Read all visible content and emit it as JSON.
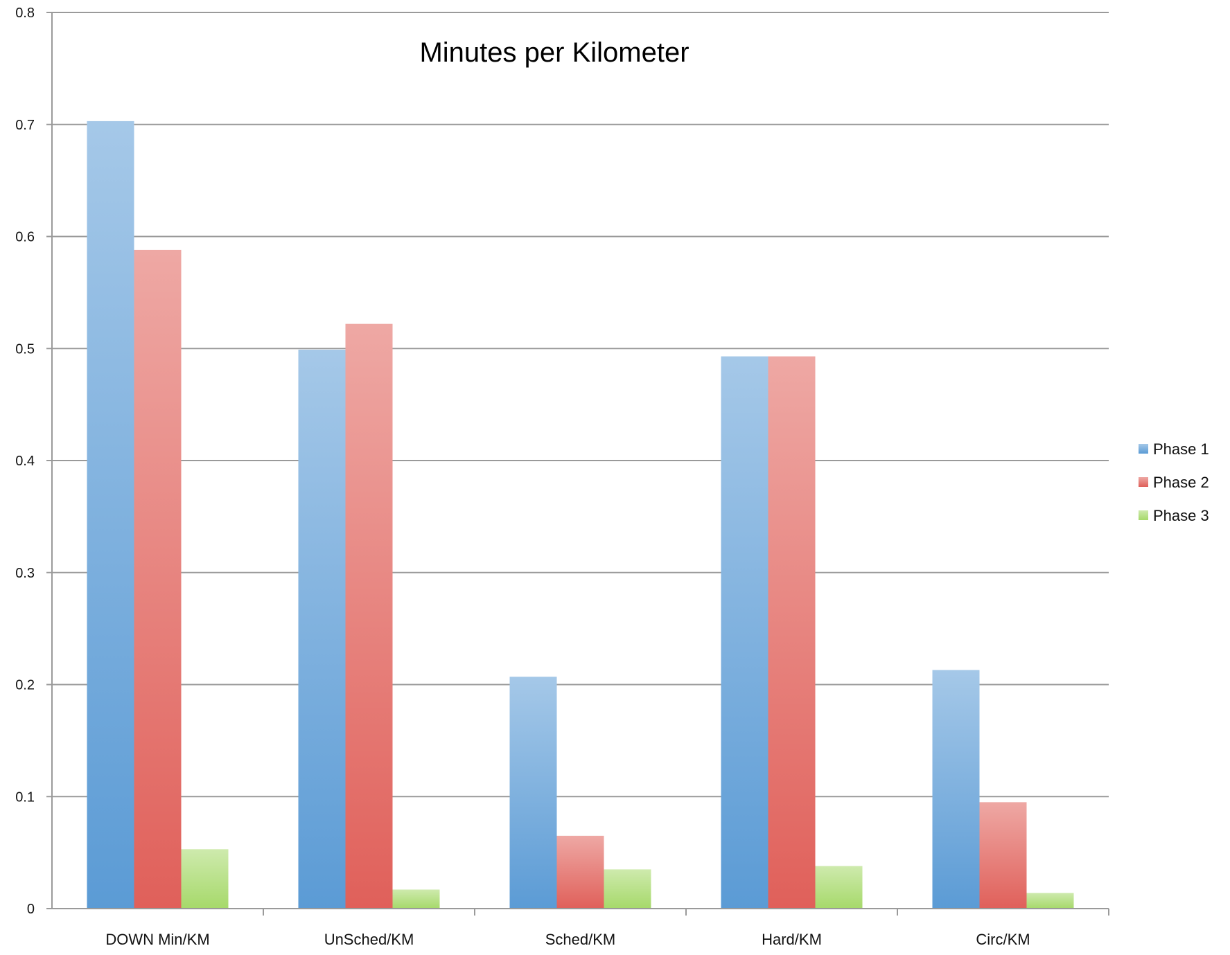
{
  "chart_data": {
    "type": "bar",
    "title": "Minutes per Kilometer",
    "xlabel": "",
    "ylabel": "",
    "ylim": [
      0,
      0.8
    ],
    "yticks": [
      0,
      0.1,
      0.2,
      0.3,
      0.4,
      0.5,
      0.6,
      0.7,
      0.8
    ],
    "ytick_labels": [
      "0",
      "0.1",
      "0.2",
      "0.3",
      "0.4",
      "0.5",
      "0.6",
      "0.7",
      "0.8"
    ],
    "grid": true,
    "legend_position": "right",
    "categories": [
      "DOWN Min/KM",
      "UnSched/KM",
      "Sched/KM",
      "Hard/KM",
      "Circ/KM"
    ],
    "series": [
      {
        "name": "Phase 1",
        "color": "#5b9bd5",
        "values": [
          0.703,
          0.499,
          0.207,
          0.493,
          0.213
        ]
      },
      {
        "name": "Phase 2",
        "color": "#e0605a",
        "values": [
          0.588,
          0.522,
          0.065,
          0.493,
          0.095
        ]
      },
      {
        "name": "Phase 3",
        "color": "#a6d96a",
        "values": [
          0.053,
          0.017,
          0.035,
          0.038,
          0.014
        ]
      }
    ]
  }
}
